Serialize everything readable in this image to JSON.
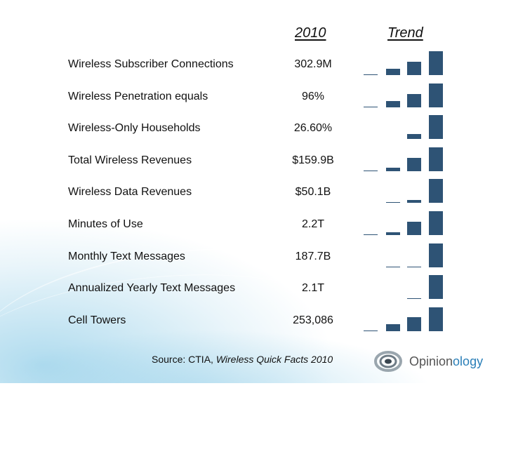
{
  "headers": {
    "year": "2010",
    "trend": "Trend"
  },
  "rows": [
    {
      "label": "Wireless Subscriber Connections",
      "value": "302.9M",
      "trend": [
        0,
        0.25,
        0.55,
        1
      ]
    },
    {
      "label": "Wireless Penetration equals",
      "value": "96%",
      "trend": [
        0,
        0.25,
        0.55,
        1
      ]
    },
    {
      "label": "Wireless-Only Households",
      "value": "26.60%",
      "trend": [
        null,
        null,
        0.2,
        1
      ]
    },
    {
      "label": "Total Wireless Revenues",
      "value": "$159.9B",
      "trend": [
        0,
        0.15,
        0.55,
        1
      ]
    },
    {
      "label": "Wireless Data Revenues",
      "value": "$50.1B",
      "trend": [
        null,
        0,
        0.1,
        1
      ]
    },
    {
      "label": "Minutes of Use",
      "value": "2.2T",
      "trend": [
        0,
        0.1,
        0.55,
        1
      ]
    },
    {
      "label": "Monthly Text Messages",
      "value": "187.7B",
      "trend": [
        null,
        0,
        0,
        1
      ]
    },
    {
      "label": "Annualized Yearly Text Messages",
      "value": "2.1T",
      "trend": [
        null,
        null,
        0,
        1
      ]
    },
    {
      "label": "Cell Towers",
      "value": "253,086",
      "trend": [
        0,
        0.3,
        0.6,
        1
      ]
    }
  ],
  "source": {
    "prefix": "Source: CTIA, ",
    "title": "Wireless Quick Facts 2010"
  },
  "logo": {
    "name_start": "Opinion",
    "name_accent": "ology"
  },
  "colors": {
    "bar": "#2e5375",
    "accent": "#2a7fb8"
  }
}
